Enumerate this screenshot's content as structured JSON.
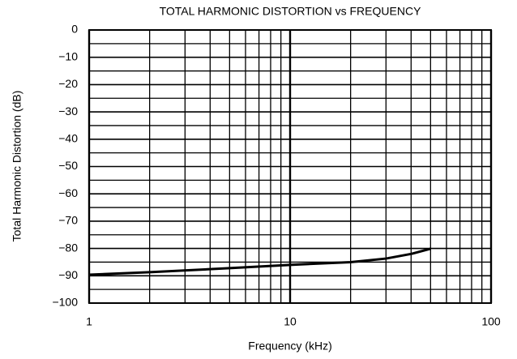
{
  "chart_data": {
    "type": "line",
    "title": "TOTAL HARMONIC DISTORTION vs FREQUENCY",
    "x_label": "Frequency (kHz)",
    "y_label": "Total Harmonic Distortion (dB)",
    "x_scale": "log",
    "grid": true,
    "xlim": [
      1,
      100
    ],
    "xticks": [
      1,
      10,
      100
    ],
    "x_minor_ticks": [
      2,
      3,
      4,
      5,
      6,
      7,
      8,
      9,
      20,
      30,
      40,
      50,
      60,
      70,
      80,
      90
    ],
    "ylim": [
      -100,
      0
    ],
    "yticks": [
      0,
      {
        "value": -10,
        "label": "−10"
      },
      {
        "value": -20,
        "label": "−20"
      },
      {
        "value": -30,
        "label": "−30"
      },
      {
        "value": -40,
        "label": "−40"
      },
      {
        "value": -50,
        "label": "−50"
      },
      {
        "value": -60,
        "label": "−60"
      },
      {
        "value": -70,
        "label": "−70"
      },
      {
        "value": -80,
        "label": "−80"
      },
      {
        "value": -90,
        "label": "−90"
      },
      {
        "value": -100,
        "label": "−100"
      }
    ],
    "y_minor_ticks": [
      -5,
      -15,
      -25,
      -35,
      -45,
      -55,
      -65,
      -75,
      -85,
      -95
    ],
    "series": [
      {
        "color": "#000000",
        "x": [
          1,
          2,
          5,
          10,
          20,
          30,
          40,
          50
        ],
        "values": [
          -89.6,
          -88.7,
          -87.2,
          -86,
          -85,
          -83.7,
          -82,
          -80.1
        ]
      }
    ]
  }
}
